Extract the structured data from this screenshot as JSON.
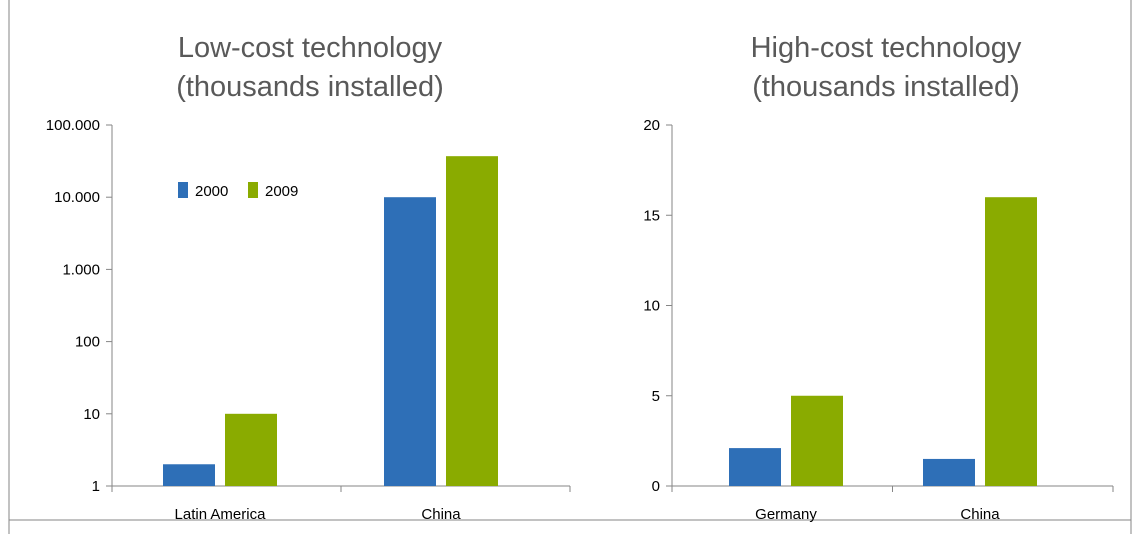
{
  "chart_data": [
    {
      "type": "bar",
      "title_lines": [
        "Low-cost technology",
        "(thousands installed)"
      ],
      "categories": [
        "Latin America",
        "China"
      ],
      "series": [
        {
          "name": "2000",
          "color": "#2e6fb7",
          "values": [
            2,
            10000
          ]
        },
        {
          "name": "2009",
          "color": "#8aab00",
          "values": [
            10,
            37000
          ]
        }
      ],
      "yscale": "log",
      "ylim": [
        1,
        100000
      ],
      "yticks": [
        1,
        10,
        100,
        1000,
        10000,
        100000
      ],
      "ytick_labels": [
        "1",
        "10",
        "100",
        "1.000",
        "10.000",
        "100.000"
      ],
      "legend_position": "upper-left inside plot",
      "grid": false
    },
    {
      "type": "bar",
      "title_lines": [
        "High-cost technology",
        "(thousands installed)"
      ],
      "categories": [
        "Germany",
        "China"
      ],
      "series": [
        {
          "name": "2000",
          "color": "#2e6fb7",
          "values": [
            2.1,
            1.5
          ]
        },
        {
          "name": "2009",
          "color": "#8aab00",
          "values": [
            5,
            16
          ]
        }
      ],
      "yscale": "linear",
      "ylim": [
        0,
        20
      ],
      "yticks": [
        0,
        5,
        10,
        15,
        20
      ],
      "ytick_labels": [
        "0",
        "5",
        "10",
        "15",
        "20"
      ],
      "grid": false
    }
  ]
}
